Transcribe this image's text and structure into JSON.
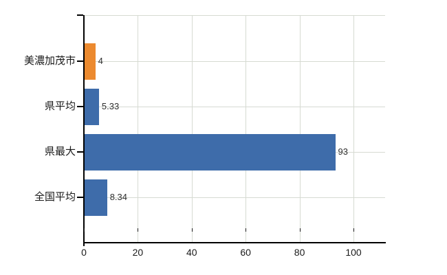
{
  "chart_data": {
    "type": "bar",
    "orientation": "horizontal",
    "title": "",
    "xlabel": "",
    "ylabel": "",
    "categories": [
      "美濃加茂市",
      "県平均",
      "県最大",
      "全国平均"
    ],
    "values": [
      4,
      5.33,
      93,
      8.34
    ],
    "value_labels": [
      "4",
      "5.33",
      "93",
      "8.34"
    ],
    "bar_colors": [
      "#EC8A2F",
      "#3E6CAA",
      "#3E6CAA",
      "#3E6CAA"
    ],
    "x_ticks": [
      0,
      20,
      40,
      60,
      80,
      100
    ],
    "x_tick_labels": [
      "0",
      "20",
      "40",
      "60",
      "80",
      "100"
    ],
    "xlim": [
      0,
      112
    ],
    "grid": true,
    "legend": false,
    "colors": {
      "highlight_bar": "#EC8A2F",
      "default_bar": "#3E6CAA",
      "gridline": "#d6dad2",
      "axis": "#000000",
      "value_label_text": "#2e2e2e",
      "tick_label_text": "#1a1a1a",
      "background": "#ffffff"
    }
  }
}
